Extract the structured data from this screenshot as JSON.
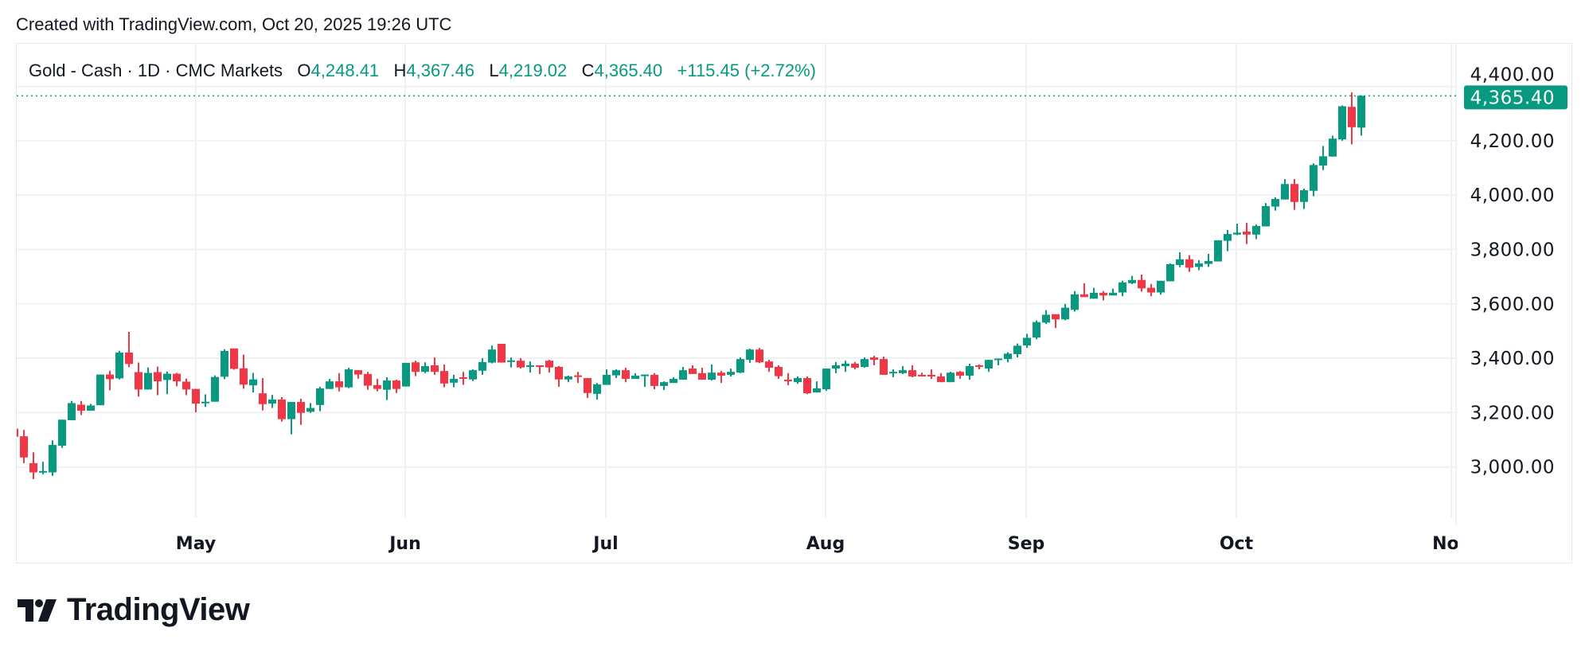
{
  "header": {
    "created": "Created with TradingView.com, Oct 20, 2025 19:26 UTC"
  },
  "legend": {
    "symbol": "Gold - Cash · 1D · CMC Markets",
    "o_label": "O",
    "o_value": "4,248.41",
    "h_label": "H",
    "h_value": "4,367.46",
    "l_label": "L",
    "l_value": "4,219.02",
    "c_label": "C",
    "c_value": "4,365.40",
    "change": "+115.45 (+2.72%)"
  },
  "logo": {
    "text": "TradingView"
  },
  "colors": {
    "up": "#089981",
    "down": "#F23645",
    "grid": "#f0f1f3",
    "text": "#131722"
  },
  "chart_data": {
    "type": "candlestick",
    "title": "",
    "interval": "1D",
    "ylim": [
      2850,
      4430
    ],
    "y_ticks": [
      "3,000.00",
      "3,200.00",
      "3,400.00",
      "3,600.00",
      "3,800.00",
      "4,000.00",
      "4,200.00",
      "4,400.00"
    ],
    "y_tick_values": [
      3000,
      3200,
      3400,
      3600,
      3800,
      4000,
      4200,
      4400
    ],
    "x_ticks": [
      "May",
      "Jun",
      "Jul",
      "Aug",
      "Sep",
      "Oct",
      "Nov"
    ],
    "last_price_label": "4,365.40",
    "last_price": 4365.4,
    "grid": true,
    "ohlc": [
      [
        3141,
        3145,
        3105,
        3111
      ],
      [
        3113,
        3136,
        3014,
        3035
      ],
      [
        3014,
        3054,
        2955,
        2980
      ],
      [
        2982,
        3019,
        2973,
        2985
      ],
      [
        2980,
        3098,
        2967,
        3081
      ],
      [
        3078,
        3174,
        3070,
        3174
      ],
      [
        3172,
        3243,
        3172,
        3235
      ],
      [
        3229,
        3243,
        3191,
        3207
      ],
      [
        3207,
        3232,
        3207,
        3226
      ],
      [
        3227,
        3340,
        3227,
        3340
      ],
      [
        3340,
        3354,
        3282,
        3323
      ],
      [
        3326,
        3427,
        3322,
        3421
      ],
      [
        3421,
        3497,
        3367,
        3379
      ],
      [
        3349,
        3384,
        3259,
        3285
      ],
      [
        3285,
        3366,
        3285,
        3346
      ],
      [
        3349,
        3369,
        3264,
        3315
      ],
      [
        3320,
        3351,
        3268,
        3343
      ],
      [
        3343,
        3346,
        3297,
        3315
      ],
      [
        3314,
        3325,
        3264,
        3285
      ],
      [
        3287,
        3287,
        3201,
        3233
      ],
      [
        3236,
        3267,
        3221,
        3240
      ],
      [
        3240,
        3337,
        3240,
        3331
      ],
      [
        3332,
        3433,
        3323,
        3427
      ],
      [
        3436,
        3436,
        3358,
        3361
      ],
      [
        3363,
        3413,
        3288,
        3303
      ],
      [
        3300,
        3346,
        3274,
        3322
      ],
      [
        3271,
        3327,
        3208,
        3231
      ],
      [
        3233,
        3265,
        3217,
        3248
      ],
      [
        3248,
        3257,
        3167,
        3176
      ],
      [
        3176,
        3239,
        3120,
        3239
      ],
      [
        3239,
        3251,
        3155,
        3199
      ],
      [
        3203,
        3235,
        3199,
        3217
      ],
      [
        3228,
        3295,
        3205,
        3289
      ],
      [
        3287,
        3324,
        3287,
        3315
      ],
      [
        3315,
        3345,
        3278,
        3293
      ],
      [
        3293,
        3365,
        3290,
        3359
      ],
      [
        3356,
        3356,
        3325,
        3340
      ],
      [
        3342,
        3350,
        3284,
        3299
      ],
      [
        3301,
        3324,
        3278,
        3287
      ],
      [
        3284,
        3330,
        3246,
        3318
      ],
      [
        3318,
        3321,
        3272,
        3287
      ],
      [
        3296,
        3383,
        3296,
        3383
      ],
      [
        3385,
        3391,
        3334,
        3350
      ],
      [
        3350,
        3385,
        3345,
        3371
      ],
      [
        3374,
        3403,
        3339,
        3350
      ],
      [
        3353,
        3377,
        3293,
        3307
      ],
      [
        3310,
        3339,
        3293,
        3324
      ],
      [
        3330,
        3350,
        3302,
        3325
      ],
      [
        3322,
        3359,
        3316,
        3356
      ],
      [
        3354,
        3400,
        3339,
        3386
      ],
      [
        3384,
        3447,
        3381,
        3432
      ],
      [
        3453,
        3453,
        3384,
        3384
      ],
      [
        3388,
        3403,
        3366,
        3392
      ],
      [
        3391,
        3400,
        3362,
        3366
      ],
      [
        3370,
        3388,
        3347,
        3374
      ],
      [
        3374,
        3374,
        3342,
        3369
      ],
      [
        3391,
        3394,
        3347,
        3366
      ],
      [
        3368,
        3371,
        3295,
        3322
      ],
      [
        3322,
        3336,
        3312,
        3333
      ],
      [
        3337,
        3350,
        3309,
        3332
      ],
      [
        3327,
        3327,
        3254,
        3272
      ],
      [
        3269,
        3309,
        3248,
        3304
      ],
      [
        3302,
        3359,
        3302,
        3339
      ],
      [
        3337,
        3359,
        3327,
        3356
      ],
      [
        3356,
        3365,
        3312,
        3324
      ],
      [
        3324,
        3345,
        3324,
        3336
      ],
      [
        3334,
        3340,
        3295,
        3340
      ],
      [
        3339,
        3345,
        3286,
        3298
      ],
      [
        3298,
        3315,
        3283,
        3312
      ],
      [
        3309,
        3330,
        3309,
        3324
      ],
      [
        3321,
        3368,
        3321,
        3356
      ],
      [
        3362,
        3374,
        3342,
        3342
      ],
      [
        3345,
        3365,
        3321,
        3321
      ],
      [
        3321,
        3377,
        3318,
        3347
      ],
      [
        3347,
        3353,
        3309,
        3336
      ],
      [
        3339,
        3362,
        3333,
        3350
      ],
      [
        3347,
        3403,
        3345,
        3397
      ],
      [
        3394,
        3435,
        3383,
        3432
      ],
      [
        3432,
        3438,
        3382,
        3385
      ],
      [
        3388,
        3394,
        3350,
        3365
      ],
      [
        3368,
        3374,
        3324,
        3334
      ],
      [
        3321,
        3345,
        3301,
        3316
      ],
      [
        3312,
        3333,
        3306,
        3327
      ],
      [
        3327,
        3333,
        3268,
        3271
      ],
      [
        3274,
        3315,
        3274,
        3289
      ],
      [
        3286,
        3362,
        3280,
        3362
      ],
      [
        3362,
        3386,
        3345,
        3374
      ],
      [
        3371,
        3391,
        3350,
        3380
      ],
      [
        3380,
        3386,
        3359,
        3365
      ],
      [
        3368,
        3403,
        3365,
        3397
      ],
      [
        3403,
        3409,
        3374,
        3394
      ],
      [
        3397,
        3406,
        3339,
        3339
      ],
      [
        3345,
        3359,
        3330,
        3350
      ],
      [
        3345,
        3371,
        3342,
        3356
      ],
      [
        3356,
        3374,
        3330,
        3333
      ],
      [
        3339,
        3347,
        3333,
        3333
      ],
      [
        3339,
        3359,
        3324,
        3333
      ],
      [
        3333,
        3345,
        3312,
        3312
      ],
      [
        3312,
        3350,
        3312,
        3347
      ],
      [
        3350,
        3353,
        3324,
        3336
      ],
      [
        3336,
        3380,
        3321,
        3371
      ],
      [
        3374,
        3377,
        3359,
        3368
      ],
      [
        3362,
        3394,
        3350,
        3394
      ],
      [
        3394,
        3399,
        3374,
        3399
      ],
      [
        3397,
        3422,
        3385,
        3417
      ],
      [
        3415,
        3454,
        3403,
        3446
      ],
      [
        3447,
        3490,
        3438,
        3475
      ],
      [
        3476,
        3539,
        3470,
        3533
      ],
      [
        3531,
        3577,
        3526,
        3560
      ],
      [
        3562,
        3562,
        3511,
        3543
      ],
      [
        3543,
        3600,
        3540,
        3586
      ],
      [
        3578,
        3647,
        3572,
        3635
      ],
      [
        3635,
        3676,
        3625,
        3625
      ],
      [
        3619,
        3659,
        3619,
        3641
      ],
      [
        3641,
        3647,
        3613,
        3631
      ],
      [
        3631,
        3656,
        3631,
        3641
      ],
      [
        3642,
        3685,
        3628,
        3679
      ],
      [
        3676,
        3703,
        3673,
        3688
      ],
      [
        3688,
        3708,
        3645,
        3657
      ],
      [
        3659,
        3673,
        3628,
        3642
      ],
      [
        3642,
        3685,
        3634,
        3685
      ],
      [
        3683,
        3749,
        3683,
        3746
      ],
      [
        3743,
        3790,
        3735,
        3764
      ],
      [
        3764,
        3779,
        3718,
        3733
      ],
      [
        3736,
        3761,
        3724,
        3749
      ],
      [
        3747,
        3784,
        3736,
        3758
      ],
      [
        3756,
        3834,
        3756,
        3834
      ],
      [
        3832,
        3872,
        3794,
        3857
      ],
      [
        3855,
        3895,
        3853,
        3862
      ],
      [
        3866,
        3898,
        3820,
        3855
      ],
      [
        3855,
        3892,
        3838,
        3887
      ],
      [
        3885,
        3971,
        3885,
        3960
      ],
      [
        3958,
        3992,
        3943,
        3986
      ],
      [
        3984,
        4059,
        3984,
        4041
      ],
      [
        4041,
        4059,
        3946,
        3975
      ],
      [
        3975,
        4024,
        3949,
        4018
      ],
      [
        4016,
        4117,
        3996,
        4111
      ],
      [
        4109,
        4181,
        4092,
        4143
      ],
      [
        4142,
        4219,
        4142,
        4208
      ],
      [
        4205,
        4330,
        4200,
        4327
      ],
      [
        4325,
        4378,
        4187,
        4250
      ],
      [
        4248.41,
        4367.46,
        4219.02,
        4365.4
      ]
    ]
  }
}
